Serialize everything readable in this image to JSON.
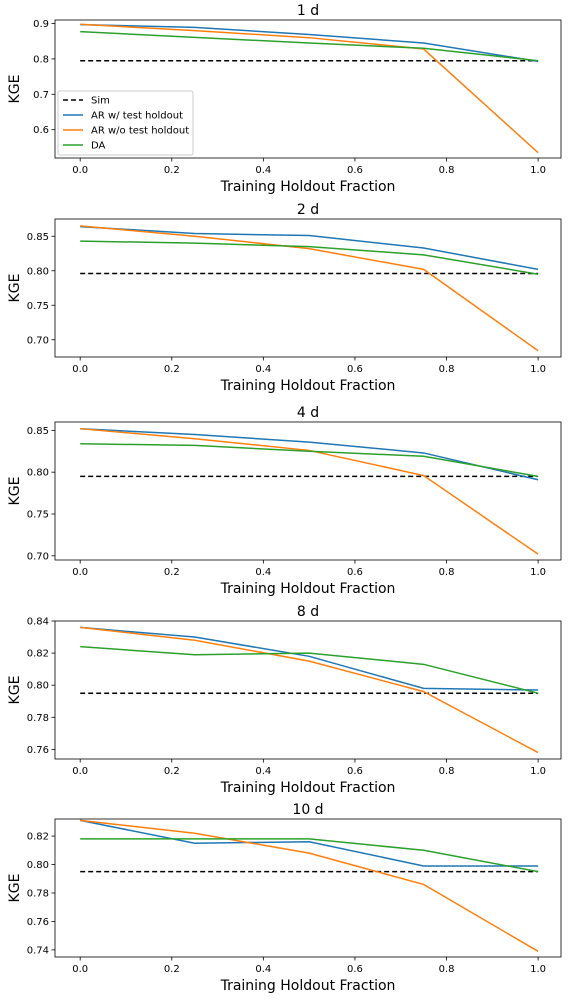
{
  "chart_data": [
    {
      "type": "line",
      "title": "1 d",
      "xlabel": "Training Holdout Fraction",
      "ylabel": "KGE",
      "x": [
        0.0,
        0.25,
        0.5,
        0.75,
        1.0
      ],
      "xticks": [
        "0.0",
        "0.2",
        "0.4",
        "0.6",
        "0.8",
        "1.0"
      ],
      "ylim": [
        0.52,
        0.91
      ],
      "yticks": [
        "0.6",
        "0.7",
        "0.8",
        "0.9"
      ],
      "legend": "lower-left",
      "series": [
        {
          "name": "Sim",
          "color": "#000000",
          "style": "dashed",
          "values": [
            0.795,
            0.795,
            0.795,
            0.795,
            0.795
          ]
        },
        {
          "name": "AR w/ test holdout",
          "color": "#1f77b4",
          "style": "solid",
          "values": [
            0.897,
            0.889,
            0.869,
            0.845,
            0.793
          ]
        },
        {
          "name": "AR w/o test holdout",
          "color": "#ff7f0e",
          "style": "solid",
          "values": [
            0.898,
            0.88,
            0.86,
            0.828,
            0.535
          ]
        },
        {
          "name": "DA",
          "color": "#2ca02c",
          "style": "solid",
          "values": [
            0.877,
            0.861,
            0.845,
            0.83,
            0.795
          ]
        }
      ]
    },
    {
      "type": "line",
      "title": "2 d",
      "xlabel": "Training Holdout Fraction",
      "ylabel": "KGE",
      "x": [
        0.0,
        0.25,
        0.5,
        0.75,
        1.0
      ],
      "xticks": [
        "0.0",
        "0.2",
        "0.4",
        "0.6",
        "0.8",
        "1.0"
      ],
      "ylim": [
        0.675,
        0.875
      ],
      "yticks": [
        "0.70",
        "0.75",
        "0.80",
        "0.85"
      ],
      "series": [
        {
          "name": "Sim",
          "color": "#000000",
          "style": "dashed",
          "values": [
            0.796,
            0.796,
            0.796,
            0.796,
            0.796
          ]
        },
        {
          "name": "AR w/ test holdout",
          "color": "#1f77b4",
          "style": "solid",
          "values": [
            0.864,
            0.854,
            0.851,
            0.833,
            0.802
          ]
        },
        {
          "name": "AR w/o test holdout",
          "color": "#ff7f0e",
          "style": "solid",
          "values": [
            0.865,
            0.85,
            0.832,
            0.802,
            0.684
          ]
        },
        {
          "name": "DA",
          "color": "#2ca02c",
          "style": "solid",
          "values": [
            0.843,
            0.84,
            0.835,
            0.823,
            0.795
          ]
        }
      ]
    },
    {
      "type": "line",
      "title": "4 d",
      "xlabel": "Training Holdout Fraction",
      "ylabel": "KGE",
      "x": [
        0.0,
        0.25,
        0.5,
        0.75,
        1.0
      ],
      "xticks": [
        "0.0",
        "0.2",
        "0.4",
        "0.6",
        "0.8",
        "1.0"
      ],
      "ylim": [
        0.695,
        0.86
      ],
      "yticks": [
        "0.70",
        "0.75",
        "0.80",
        "0.85"
      ],
      "series": [
        {
          "name": "Sim",
          "color": "#000000",
          "style": "dashed",
          "values": [
            0.795,
            0.795,
            0.795,
            0.795,
            0.795
          ]
        },
        {
          "name": "AR w/ test holdout",
          "color": "#1f77b4",
          "style": "solid",
          "values": [
            0.852,
            0.845,
            0.836,
            0.823,
            0.791
          ]
        },
        {
          "name": "AR w/o test holdout",
          "color": "#ff7f0e",
          "style": "solid",
          "values": [
            0.852,
            0.84,
            0.826,
            0.796,
            0.702
          ]
        },
        {
          "name": "DA",
          "color": "#2ca02c",
          "style": "solid",
          "values": [
            0.834,
            0.832,
            0.825,
            0.819,
            0.795
          ]
        }
      ]
    },
    {
      "type": "line",
      "title": "8 d",
      "xlabel": "Training Holdout Fraction",
      "ylabel": "KGE",
      "x": [
        0.0,
        0.25,
        0.5,
        0.75,
        1.0
      ],
      "xticks": [
        "0.0",
        "0.2",
        "0.4",
        "0.6",
        "0.8",
        "1.0"
      ],
      "ylim": [
        0.754,
        0.84
      ],
      "yticks": [
        "0.76",
        "0.78",
        "0.80",
        "0.82",
        "0.84"
      ],
      "series": [
        {
          "name": "Sim",
          "color": "#000000",
          "style": "dashed",
          "values": [
            0.795,
            0.795,
            0.795,
            0.795,
            0.795
          ]
        },
        {
          "name": "AR w/ test holdout",
          "color": "#1f77b4",
          "style": "solid",
          "values": [
            0.836,
            0.83,
            0.818,
            0.798,
            0.797
          ]
        },
        {
          "name": "AR w/o test holdout",
          "color": "#ff7f0e",
          "style": "solid",
          "values": [
            0.836,
            0.828,
            0.815,
            0.796,
            0.758
          ]
        },
        {
          "name": "DA",
          "color": "#2ca02c",
          "style": "solid",
          "values": [
            0.824,
            0.819,
            0.82,
            0.813,
            0.795
          ]
        }
      ]
    },
    {
      "type": "line",
      "title": "10 d",
      "xlabel": "Training Holdout Fraction",
      "ylabel": "KGE",
      "x": [
        0.0,
        0.25,
        0.5,
        0.75,
        1.0
      ],
      "xticks": [
        "0.0",
        "0.2",
        "0.4",
        "0.6",
        "0.8",
        "1.0"
      ],
      "ylim": [
        0.735,
        0.832
      ],
      "yticks": [
        "0.74",
        "0.76",
        "0.78",
        "0.80",
        "0.82"
      ],
      "series": [
        {
          "name": "Sim",
          "color": "#000000",
          "style": "dashed",
          "values": [
            0.795,
            0.795,
            0.795,
            0.795,
            0.795
          ]
        },
        {
          "name": "AR w/ test holdout",
          "color": "#1f77b4",
          "style": "solid",
          "values": [
            0.831,
            0.815,
            0.816,
            0.799,
            0.799
          ]
        },
        {
          "name": "AR w/o test holdout",
          "color": "#ff7f0e",
          "style": "solid",
          "values": [
            0.831,
            0.822,
            0.808,
            0.786,
            0.739
          ]
        },
        {
          "name": "DA",
          "color": "#2ca02c",
          "style": "solid",
          "values": [
            0.818,
            0.818,
            0.818,
            0.81,
            0.795
          ]
        }
      ]
    }
  ]
}
